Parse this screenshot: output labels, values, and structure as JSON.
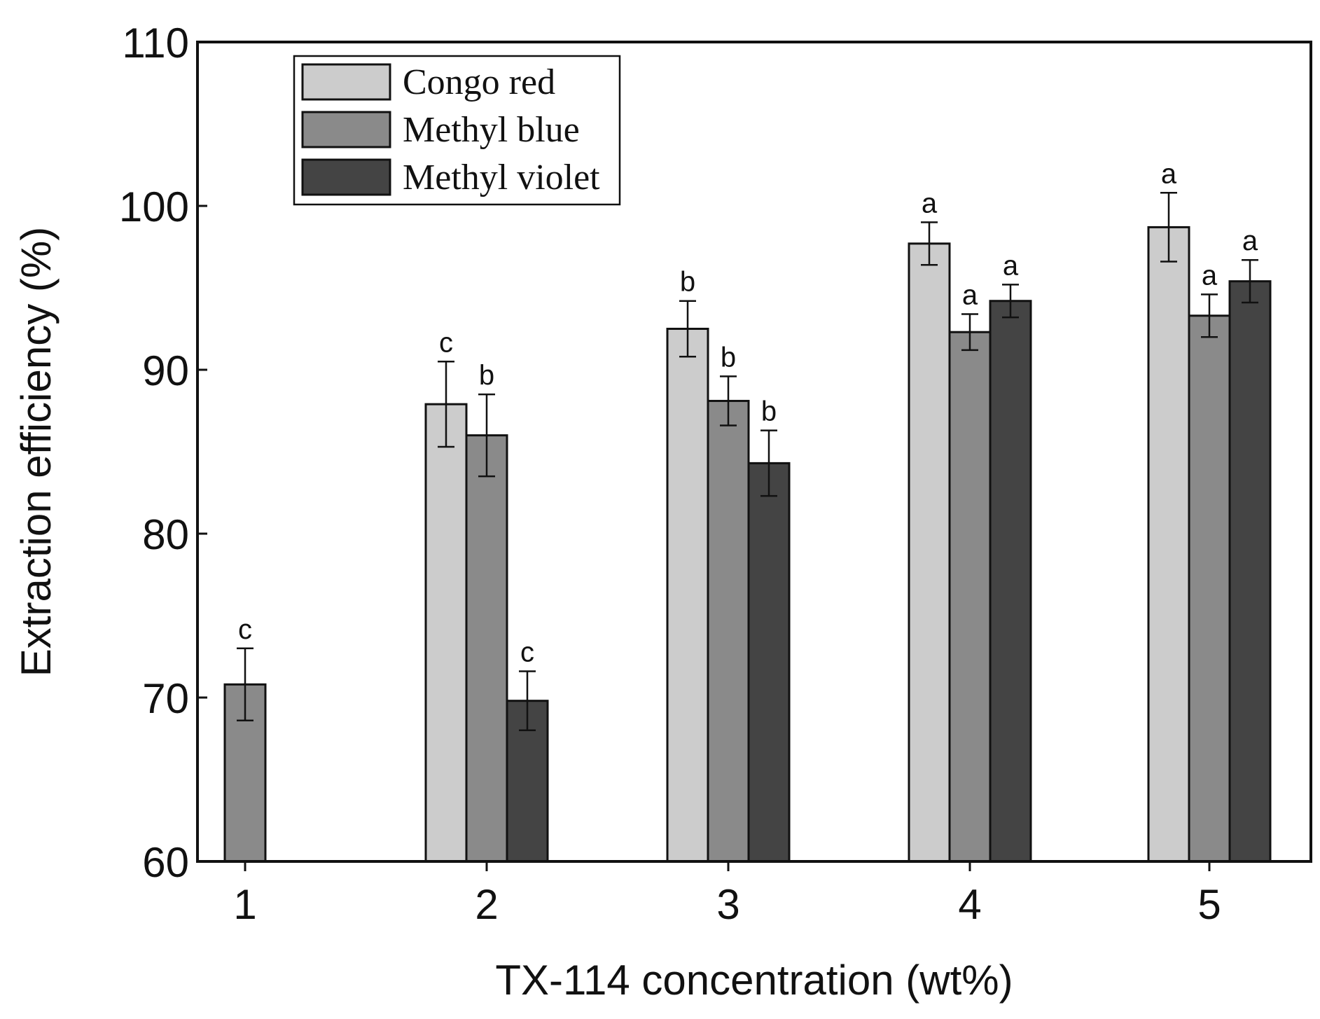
{
  "chart_data": {
    "type": "bar",
    "title": "",
    "xlabel": "TX-114 concentration (wt%)",
    "ylabel": "Extraction efficiency (%)",
    "ylim": [
      60,
      110
    ],
    "yticks": [
      60,
      70,
      80,
      90,
      100,
      110
    ],
    "categories": [
      "1",
      "2",
      "3",
      "4",
      "5"
    ],
    "grid": false,
    "legend_position": "top-left",
    "colors": {
      "Congo red": "#cccccc",
      "Methyl blue": "#8a8a8a",
      "Methyl violet": "#444444"
    },
    "series": [
      {
        "name": "Congo red",
        "values": [
          null,
          87.9,
          92.5,
          97.7,
          98.7
        ],
        "errors": [
          null,
          2.6,
          1.7,
          1.3,
          2.1
        ],
        "labels": [
          null,
          "c",
          "b",
          "a",
          "a"
        ]
      },
      {
        "name": "Methyl blue",
        "values": [
          70.8,
          86.0,
          88.1,
          92.3,
          93.3
        ],
        "errors": [
          2.2,
          2.5,
          1.5,
          1.1,
          1.3
        ],
        "labels": [
          "c",
          "b",
          "b",
          "a",
          "a"
        ]
      },
      {
        "name": "Methyl violet",
        "values": [
          null,
          69.8,
          84.3,
          94.2,
          95.4
        ],
        "errors": [
          null,
          1.8,
          2.0,
          1.0,
          1.3
        ],
        "labels": [
          null,
          "c",
          "b",
          "a",
          "a"
        ]
      }
    ]
  }
}
